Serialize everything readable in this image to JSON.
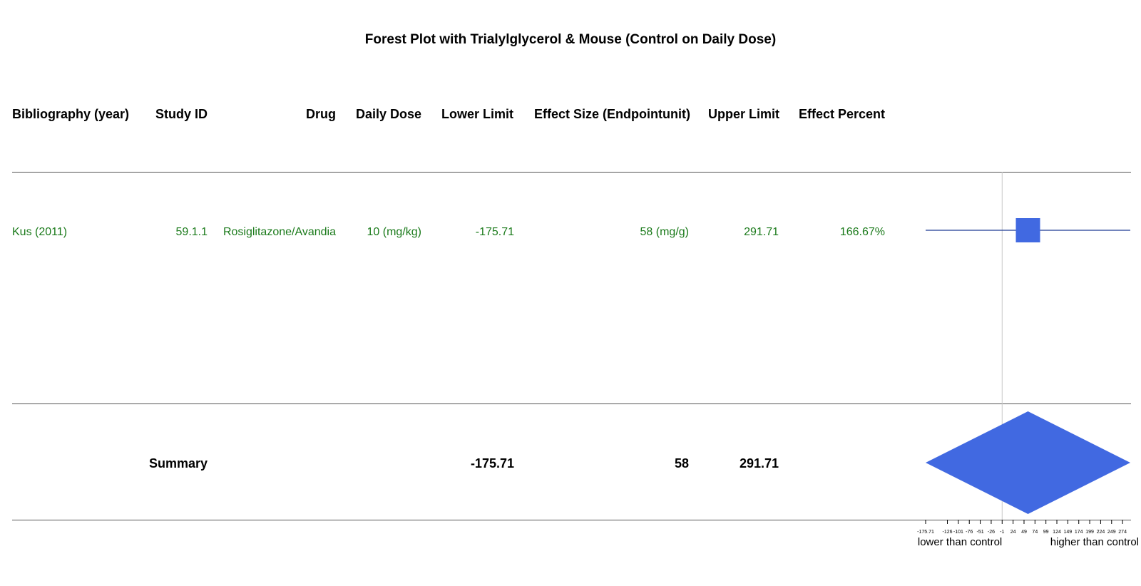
{
  "title": "Forest Plot with Trialylglycerol & Mouse (Control on Daily Dose)",
  "headers": {
    "bibliography": "Bibliography (year)",
    "study_id": "Study ID",
    "drug": "Drug",
    "daily_dose": "Daily Dose",
    "lower": "Lower Limit",
    "effect": "Effect Size (Endpointunit)",
    "upper": "Upper Limit",
    "percent": "Effect Percent"
  },
  "rows": [
    {
      "bibliography": "Kus (2011)",
      "study_id": "59.1.1",
      "drug": "Rosiglitazone/Avandia",
      "daily_dose": "10 (mg/kg)",
      "lower": "-175.71",
      "effect": "58 (mg/g)",
      "upper": "291.71",
      "percent": "166.67%"
    }
  ],
  "summary": {
    "label": "Summary",
    "lower": "-175.71",
    "effect": "58",
    "upper": "291.71"
  },
  "colors": {
    "marker": "#4169e1",
    "ci_line": "#1f3a93",
    "row_text": "#1a7a1a"
  },
  "chart_data": {
    "type": "forest",
    "studies": [
      {
        "name": "Kus (2011)",
        "estimate": 58,
        "lower": -175.71,
        "upper": 291.71
      }
    ],
    "summary": {
      "estimate": 58,
      "lower": -175.71,
      "upper": 291.71
    },
    "reference_line": -1,
    "xlim": [
      -175.71,
      291.71
    ],
    "ticks": [
      "-175.71",
      "-126",
      "-101",
      "-76",
      "-51",
      "-26",
      "-1",
      "24",
      "49",
      "74",
      "99",
      "124",
      "149",
      "174",
      "199",
      "224",
      "249",
      "274"
    ],
    "tick_values": [
      -175.71,
      -126,
      -101,
      -76,
      -51,
      -26,
      -1,
      24,
      49,
      74,
      99,
      124,
      149,
      174,
      199,
      224,
      249,
      274
    ],
    "axis_labels": {
      "left": "lower than control",
      "right": "higher than control"
    }
  }
}
